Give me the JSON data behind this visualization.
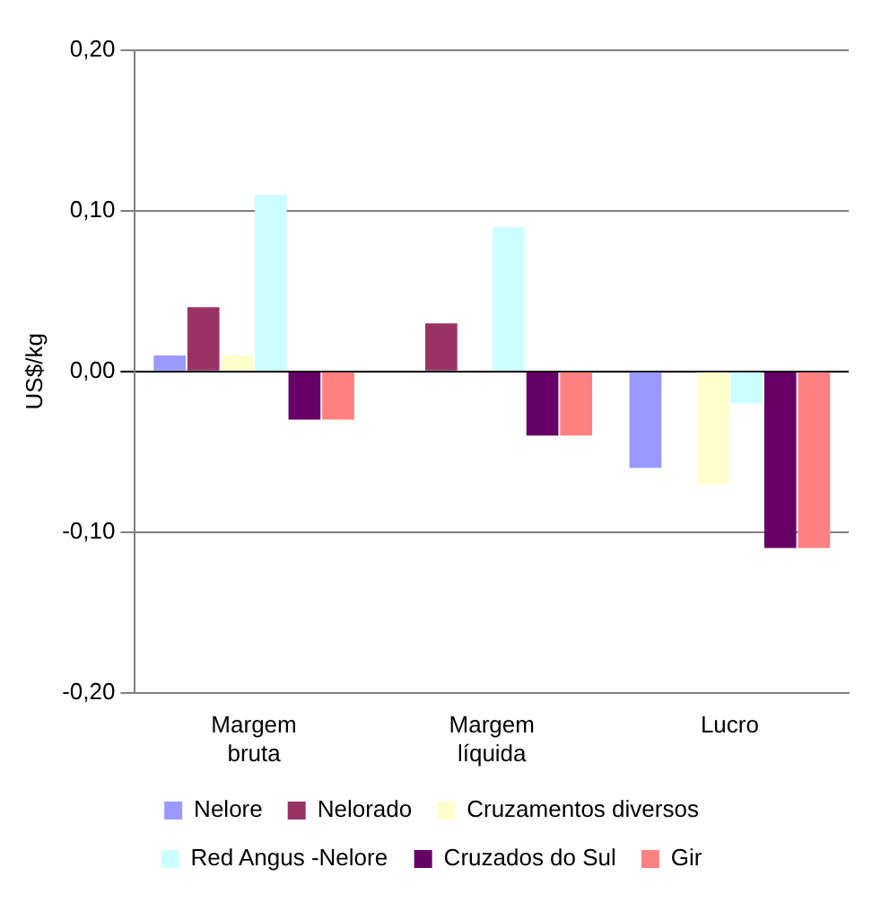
{
  "chart_data": {
    "type": "bar",
    "ylabel": "US$/kg",
    "categories": [
      "Margem bruta",
      "Margem líquida",
      "Lucro"
    ],
    "series": [
      {
        "name": "Nelore",
        "color": "#9999ff",
        "values": [
          0.01,
          0,
          -0.06
        ]
      },
      {
        "name": "Nelorado",
        "color": "#993366",
        "values": [
          0.04,
          0.03,
          0
        ]
      },
      {
        "name": "Cruzamentos diversos",
        "color": "#ffffcc",
        "values": [
          0.01,
          0,
          -0.07
        ]
      },
      {
        "name": "Red Angus -Nelore",
        "color": "#ccffff",
        "values": [
          0.11,
          0.09,
          -0.02
        ]
      },
      {
        "name": "Cruzados do Sul",
        "color": "#660066",
        "values": [
          -0.03,
          -0.04,
          -0.11
        ]
      },
      {
        "name": "Gir",
        "color": "#ff8080",
        "values": [
          -0.03,
          -0.04,
          -0.11
        ]
      }
    ],
    "ylim": [
      -0.2,
      0.2
    ],
    "yticks": [
      {
        "value": -0.2,
        "label": "-0,20"
      },
      {
        "value": -0.1,
        "label": "-0,10"
      },
      {
        "value": 0,
        "label": "0,00"
      },
      {
        "value": 0.1,
        "label": "0,10"
      },
      {
        "value": 0.2,
        "label": "0,20"
      }
    ],
    "grid": "y",
    "legend": "bottom"
  }
}
